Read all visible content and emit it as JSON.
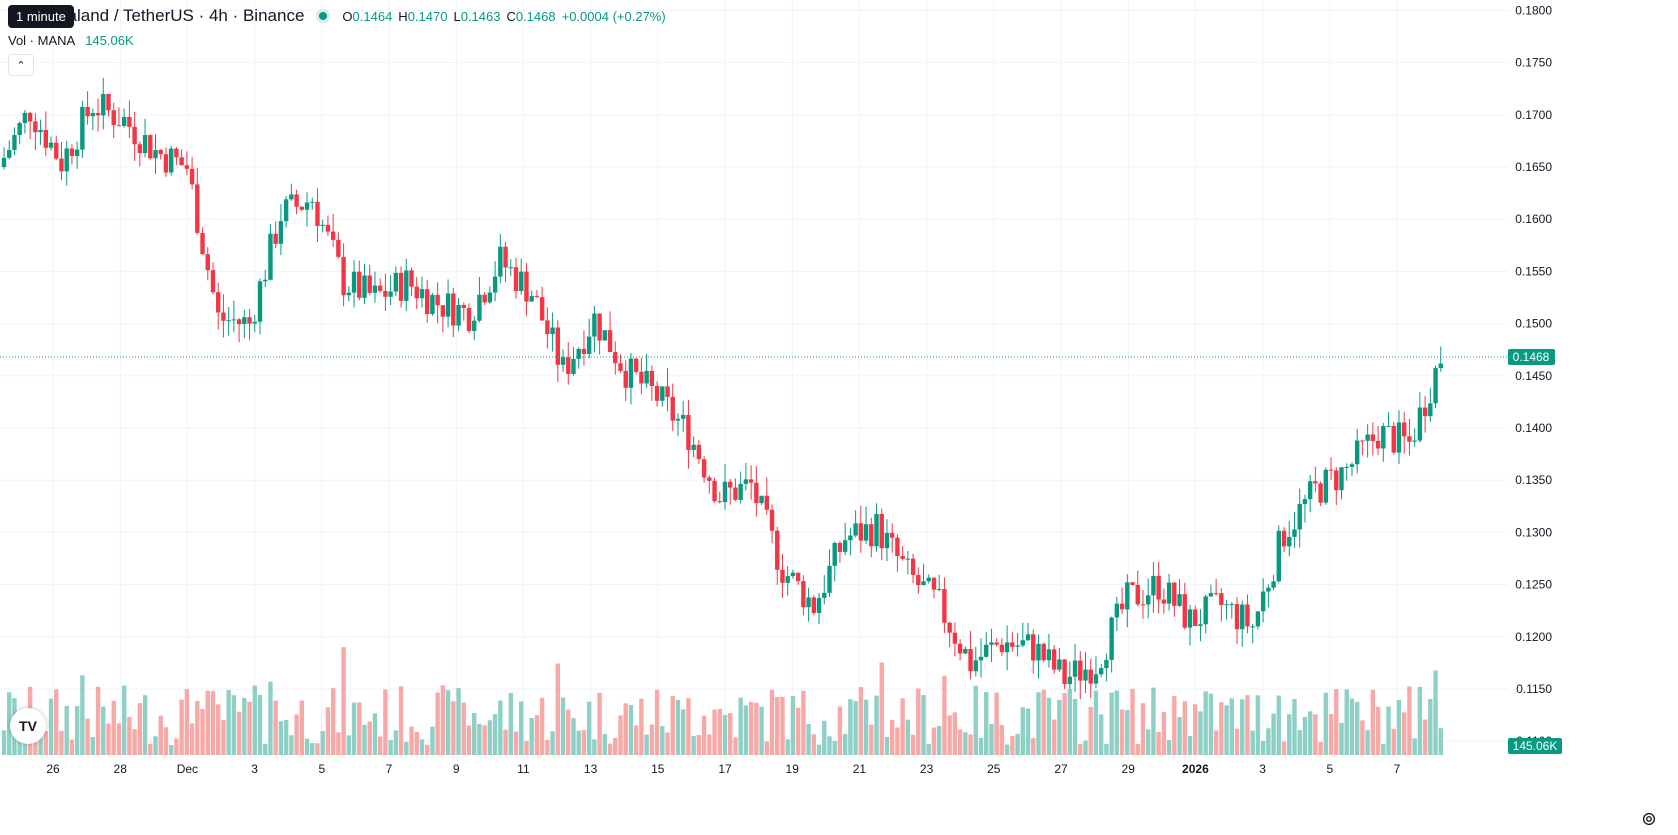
{
  "tooltip": "1 minute",
  "symbol_title": "Decentraland / TetherUS · 4h · Binance",
  "ohlc": {
    "o_label": "O",
    "o": "0.1464",
    "h_label": "H",
    "h": "0.1470",
    "l_label": "L",
    "l": "0.1463",
    "c_label": "C",
    "c": "0.1468",
    "change": "+0.0004 (+0.27%)"
  },
  "volume": {
    "label": "Vol · MANA",
    "value": "145.06K"
  },
  "colors": {
    "up": "#089981",
    "down": "#f23645",
    "up_vol": "#8ecfc6",
    "down_vol": "#f7a9a8",
    "grid": "#f0f3fa",
    "text": "#131722"
  },
  "icons": {
    "collapse": "chevron-up-icon",
    "logo": "tradingview-logo-icon",
    "settings": "gear-icon"
  },
  "chart_data": {
    "type": "candlestick",
    "price_axis_ticks": [
      "0.1800",
      "0.1750",
      "0.1700",
      "0.1650",
      "0.1600",
      "0.1550",
      "0.1500",
      "0.1450",
      "0.1400",
      "0.1350",
      "0.1300",
      "0.1250",
      "0.1200",
      "0.1150",
      "0.1100"
    ],
    "price_range": [
      0.1082,
      0.181
    ],
    "last_price_label": "0.1468",
    "last_price": 0.1468,
    "volume_label": "145.06K",
    "time_axis_ticks": [
      "26",
      "28",
      "Dec",
      "3",
      "5",
      "7",
      "9",
      "11",
      "13",
      "15",
      "17",
      "19",
      "21",
      "23",
      "25",
      "27",
      "29",
      "2026",
      "3",
      "5",
      "7"
    ],
    "day_closes": [
      0.165,
      0.1705,
      0.1655,
      0.171,
      0.1695,
      0.1665,
      0.165,
      0.1505,
      0.15,
      0.1605,
      0.162,
      0.154,
      0.1525,
      0.154,
      0.152,
      0.151,
      0.156,
      0.153,
      0.1455,
      0.1505,
      0.1455,
      0.143,
      0.1395,
      0.1335,
      0.1345,
      0.1265,
      0.123,
      0.1295,
      0.1305,
      0.126,
      0.123,
      0.1175,
      0.1195,
      0.119,
      0.116,
      0.1175,
      0.1235,
      0.125,
      0.1215,
      0.123,
      0.121,
      0.13,
      0.134,
      0.136,
      0.1395,
      0.1385,
      0.1468
    ],
    "volume_peaks_k": [
      150,
      120,
      260,
      240,
      180,
      205,
      245,
      110,
      150,
      175,
      200,
      185,
      165,
      115,
      125,
      145,
      175,
      165,
      170,
      160,
      160
    ],
    "candles_per_day": 6,
    "interval": "4h"
  }
}
